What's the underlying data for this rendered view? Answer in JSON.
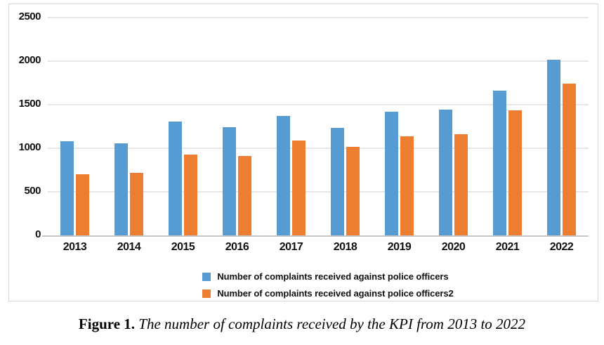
{
  "colors": {
    "series1": "#579BD3",
    "series2": "#ED7D31",
    "gridline": "#E7E7E7",
    "axis_line": "#C6C6C6",
    "frame_border": "#D6D6D6",
    "text": "#111111"
  },
  "chart_data": {
    "type": "bar",
    "title": "",
    "xlabel": "",
    "ylabel": "",
    "categories": [
      "2013",
      "2014",
      "2015",
      "2016",
      "2017",
      "2018",
      "2019",
      "2020",
      "2021",
      "2022"
    ],
    "series": [
      {
        "name": "Number of complaints received against police officers",
        "color_key": "series1",
        "values": [
          1080,
          1055,
          1305,
          1240,
          1370,
          1235,
          1420,
          1445,
          1660,
          2020
        ]
      },
      {
        "name": "Number of complaints received against police officers2",
        "color_key": "series2",
        "values": [
          705,
          715,
          925,
          915,
          1090,
          1015,
          1140,
          1160,
          1435,
          1745
        ]
      }
    ],
    "y_axis": {
      "min": 0,
      "max": 2500,
      "step": 500,
      "ticks": [
        "0",
        "500",
        "1000",
        "1500",
        "2000",
        "2500"
      ]
    },
    "grid": true,
    "legend_position": "bottom"
  },
  "caption": {
    "label": "Figure 1.",
    "text": "The number of complaints received by the KPI from 2013 to 2022"
  }
}
